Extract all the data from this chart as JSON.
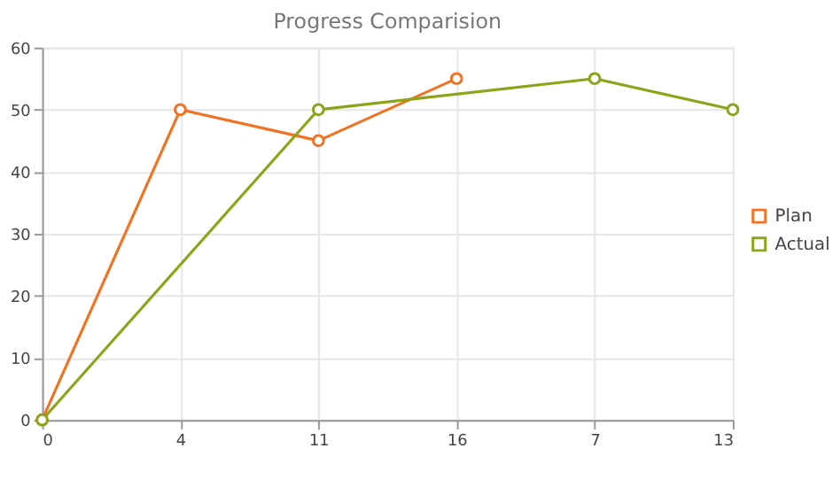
{
  "chart_data": {
    "type": "line",
    "title": "Progress Comparision",
    "categories": [
      "0",
      "4",
      "11",
      "16",
      "7",
      "13"
    ],
    "series": [
      {
        "name": "Plan",
        "color": "#f07323",
        "x": [
          "0",
          "4",
          "11",
          "16"
        ],
        "values": [
          0,
          50,
          45,
          55
        ]
      },
      {
        "name": "Actual",
        "color": "#8fa31a",
        "x": [
          "0",
          "11",
          "7",
          "13"
        ],
        "values": [
          0,
          50,
          55,
          50
        ]
      }
    ],
    "ylim": [
      0,
      60
    ],
    "yticks": [
      0,
      10,
      20,
      30,
      40,
      50,
      60
    ],
    "grid": true,
    "legend": "right",
    "marker": "circle",
    "line_style": "solid"
  }
}
